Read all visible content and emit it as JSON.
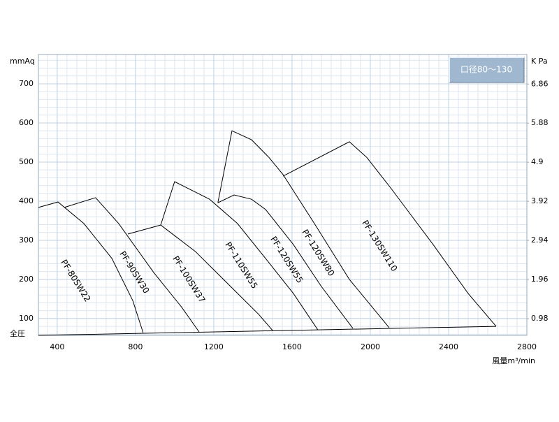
{
  "chart_data": {
    "type": "line",
    "color": "#000000",
    "grid": true,
    "annotation": "口径80～130",
    "ylabel": "mmAq",
    "ylabel_bottom": "全圧",
    "y2label": "K Pa",
    "xlabel": "風量m³/min",
    "xlim": [
      304,
      2800
    ],
    "xticks": [
      400,
      800,
      1200,
      1600,
      2000,
      2400,
      2800
    ],
    "ylim": [
      57,
      775
    ],
    "yticks": [
      100,
      200,
      300,
      400,
      500,
      600,
      700
    ],
    "y2lim": [
      0.56,
      7.6
    ],
    "y2ticks": [
      0.98,
      1.96,
      2.94,
      3.92,
      4.9,
      5.88,
      6.86
    ],
    "series": [
      {
        "name": "PF-80SW22",
        "x": [
          304,
          404,
          536,
          679,
          786,
          839
        ],
        "values": [
          384,
          398,
          343,
          254,
          146,
          64
        ]
      },
      {
        "name": "PF-90SW30",
        "x": [
          436,
          596,
          714,
          893,
          1036,
          1125
        ],
        "values": [
          384,
          409,
          343,
          218,
          129,
          66
        ]
      },
      {
        "name": "PF-100SW37",
        "x": [
          761,
          929,
          1107,
          1286,
          1429,
          1500
        ],
        "values": [
          316,
          339,
          271,
          182,
          111,
          70
        ]
      },
      {
        "name": "PF-110SW55",
        "x": [
          929,
          1000,
          1179,
          1321,
          1464,
          1607,
          1732
        ],
        "values": [
          339,
          450,
          405,
          343,
          254,
          164,
          71
        ]
      },
      {
        "name": "PF-120SW55",
        "x": [
          1221,
          1304,
          1393,
          1464,
          1607,
          1750,
          1911
        ],
        "values": [
          396,
          416,
          405,
          379,
          289,
          182,
          75
        ]
      },
      {
        "name": "PF-120SW80",
        "x": [
          1221,
          1293,
          1393,
          1482,
          1554,
          1714,
          1893,
          2096
        ],
        "values": [
          396,
          580,
          557,
          512,
          468,
          343,
          200,
          77
        ]
      },
      {
        "name": "PF-130SW110",
        "x": [
          1554,
          1893,
          1982,
          2107,
          2321,
          2500,
          2643
        ],
        "values": [
          464,
          552,
          512,
          432,
          289,
          164,
          80
        ]
      },
      {
        "x": [
          304,
          2643
        ],
        "values": [
          57,
          80
        ]
      }
    ]
  }
}
